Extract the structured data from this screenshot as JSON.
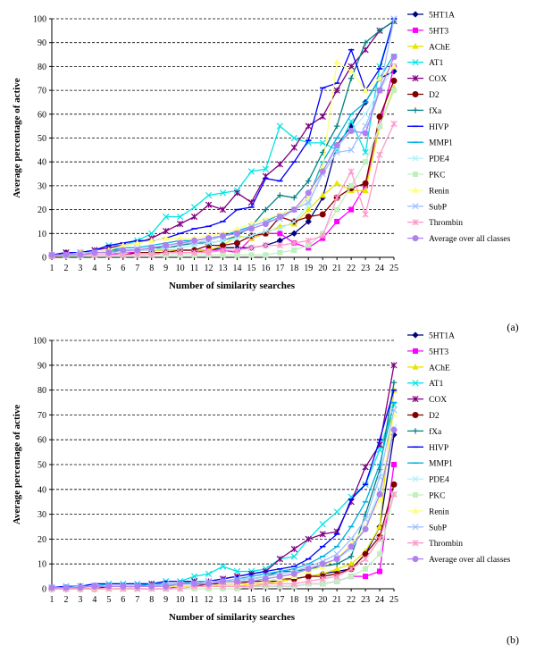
{
  "chart_data": [
    {
      "type": "line",
      "panel_label": "(a)",
      "xlabel": "Number of similarity searches",
      "ylabel": "Average percentage of active",
      "x": [
        1,
        2,
        3,
        4,
        5,
        6,
        7,
        8,
        9,
        10,
        11,
        12,
        13,
        14,
        15,
        16,
        17,
        18,
        19,
        20,
        21,
        22,
        23,
        24,
        25
      ],
      "ylim": [
        0,
        100
      ],
      "yticks": [
        0,
        10,
        20,
        30,
        40,
        50,
        60,
        70,
        80,
        90,
        100
      ],
      "grid": "horizontal dashed",
      "legend": "right",
      "series": [
        {
          "name": "5HT1A",
          "color": "#000080",
          "marker": "diamond",
          "values": [
            1,
            2,
            2,
            2,
            2,
            2,
            3,
            3,
            3,
            3,
            3,
            3,
            4,
            4,
            4,
            5,
            7,
            10,
            15,
            25,
            47,
            55,
            65,
            75,
            78
          ]
        },
        {
          "name": "5HT3",
          "color": "#ff00ff",
          "marker": "square",
          "values": [
            0.5,
            1,
            1,
            1,
            1,
            2,
            2,
            2,
            2,
            2,
            2,
            3,
            3,
            2,
            8,
            10,
            10,
            6,
            4,
            8,
            15,
            20,
            30,
            55,
            80
          ]
        },
        {
          "name": "AChE",
          "color": "#e6e600",
          "marker": "triangle",
          "values": [
            1,
            1,
            2,
            2,
            2,
            2,
            3,
            3,
            3,
            3,
            3,
            3,
            5,
            9,
            8,
            10,
            13,
            14,
            20,
            26,
            31,
            28,
            28,
            55,
            71
          ]
        },
        {
          "name": "AT1",
          "color": "#00e5e5",
          "marker": "x",
          "values": [
            1,
            2,
            2,
            3,
            5,
            5,
            7,
            10,
            17,
            17,
            21,
            26,
            27,
            28,
            36,
            37,
            55,
            50,
            48,
            48,
            45,
            57,
            44,
            80,
            100
          ]
        },
        {
          "name": "COX",
          "color": "#800080",
          "marker": "star",
          "values": [
            1,
            2,
            2,
            3,
            4,
            5,
            6,
            8,
            11,
            14,
            17,
            22,
            20,
            27,
            23,
            34,
            39,
            46,
            55,
            59,
            70,
            80,
            87,
            95,
            99
          ]
        },
        {
          "name": "D2",
          "color": "#800000",
          "marker": "circle",
          "values": [
            0.5,
            1,
            1,
            1,
            1,
            1,
            2,
            2,
            2,
            3,
            3,
            5,
            5,
            6,
            9,
            10,
            17,
            15,
            17,
            18,
            25,
            29,
            31,
            59,
            74
          ]
        },
        {
          "name": "fXa",
          "color": "#008080",
          "marker": "plus",
          "values": [
            1,
            1,
            2,
            2,
            3,
            3,
            3,
            4,
            4,
            5,
            6,
            6,
            7,
            9,
            13,
            20,
            26,
            25,
            32,
            44,
            55,
            75,
            90,
            95,
            99
          ]
        },
        {
          "name": "HIVP",
          "color": "#0000ff",
          "marker": "dash",
          "values": [
            1,
            2,
            2,
            3,
            5,
            6,
            7,
            7,
            8,
            10,
            12,
            13,
            15,
            20,
            21,
            33,
            32,
            40,
            49,
            71,
            73,
            87,
            70,
            79,
            100
          ]
        },
        {
          "name": "MMP1",
          "color": "#00b0e0",
          "marker": "dash",
          "values": [
            1,
            1,
            2,
            2,
            3,
            4,
            4,
            5,
            6,
            7,
            7,
            8,
            9,
            11,
            13,
            15,
            18,
            20,
            25,
            40,
            50,
            60,
            65,
            75,
            85
          ]
        },
        {
          "name": "PDE4",
          "color": "#b0f0ff",
          "marker": "x",
          "values": [
            1,
            1,
            1,
            2,
            2,
            2,
            3,
            3,
            4,
            4,
            5,
            6,
            7,
            8,
            9,
            11,
            12,
            15,
            22,
            36,
            46,
            53,
            60,
            70,
            80
          ]
        },
        {
          "name": "PKC",
          "color": "#c0f0c0",
          "marker": "square",
          "values": [
            0.5,
            0.5,
            0.5,
            1,
            1,
            1,
            1,
            1,
            1,
            1,
            1,
            1,
            1,
            1,
            1,
            1,
            2,
            3,
            5,
            10,
            20,
            30,
            40,
            55,
            70
          ]
        },
        {
          "name": "Renin",
          "color": "#ffff80",
          "marker": "triangle",
          "values": [
            1,
            1,
            2,
            2,
            3,
            5,
            6,
            7,
            8,
            8,
            8,
            9,
            10,
            12,
            14,
            16,
            18,
            20,
            25,
            38,
            82,
            78,
            70,
            75,
            80
          ]
        },
        {
          "name": "SubP",
          "color": "#a0c0ff",
          "marker": "x",
          "values": [
            1,
            1,
            2,
            2,
            2,
            3,
            3,
            4,
            5,
            6,
            6,
            7,
            9,
            10,
            13,
            15,
            16,
            20,
            23,
            35,
            44,
            45,
            55,
            70,
            100
          ]
        },
        {
          "name": "Thrombin",
          "color": "#ff99cc",
          "marker": "star",
          "values": [
            0.5,
            1,
            1,
            1,
            1,
            1,
            1,
            1,
            2,
            2,
            2,
            2,
            3,
            3,
            4,
            5,
            5,
            6,
            7,
            9,
            25,
            36,
            18,
            43,
            56
          ]
        },
        {
          "name": "Average over all classes",
          "color": "#b080f0",
          "marker": "circle",
          "values": [
            1,
            1,
            1,
            2,
            2,
            3,
            3,
            4,
            5,
            6,
            7,
            8,
            9,
            10,
            12,
            14,
            17,
            20,
            27,
            36,
            47,
            53,
            52,
            70,
            84
          ]
        }
      ]
    },
    {
      "type": "line",
      "panel_label": "(b)",
      "xlabel": "Number of similarity searches",
      "ylabel": "Average percentage of active",
      "x": [
        1,
        2,
        3,
        4,
        5,
        6,
        7,
        8,
        9,
        10,
        11,
        12,
        13,
        14,
        15,
        16,
        17,
        18,
        19,
        20,
        21,
        22,
        23,
        24,
        25
      ],
      "ylim": [
        0,
        100
      ],
      "yticks": [
        0,
        10,
        20,
        30,
        40,
        50,
        60,
        70,
        80,
        90,
        100
      ],
      "grid": "horizontal dashed",
      "legend": "right",
      "series": [
        {
          "name": "5HT1A",
          "color": "#000080",
          "marker": "diamond",
          "values": [
            0.5,
            0.5,
            1,
            1,
            1,
            1,
            1,
            1,
            1,
            1,
            1,
            1,
            2,
            2,
            3,
            3,
            3,
            4,
            5,
            6,
            7,
            8,
            14,
            25,
            62
          ]
        },
        {
          "name": "5HT3",
          "color": "#ff00ff",
          "marker": "square",
          "values": [
            0,
            0,
            0,
            0,
            0,
            0,
            0,
            0,
            0,
            1,
            1,
            1,
            1,
            1,
            1,
            1,
            1,
            1,
            2,
            2,
            3,
            5,
            5,
            7,
            50
          ]
        },
        {
          "name": "AChE",
          "color": "#e6e600",
          "marker": "triangle",
          "values": [
            0,
            0,
            0,
            0,
            0,
            0,
            1,
            1,
            1,
            1,
            1,
            1,
            1,
            1,
            2,
            2,
            3,
            4,
            5,
            6,
            8,
            10,
            15,
            25,
            80
          ]
        },
        {
          "name": "AT1",
          "color": "#00e5e5",
          "marker": "x",
          "values": [
            0.5,
            1,
            1,
            1,
            2,
            2,
            2,
            2,
            3,
            3,
            5,
            6,
            9,
            7,
            7,
            8,
            12,
            13,
            20,
            26,
            31,
            37,
            42,
            56,
            74
          ]
        },
        {
          "name": "COX",
          "color": "#800080",
          "marker": "star",
          "values": [
            0.5,
            0.5,
            1,
            1,
            1,
            1,
            1,
            2,
            2,
            2,
            3,
            3,
            4,
            5,
            6,
            7,
            12,
            16,
            20,
            22,
            23,
            35,
            49,
            58,
            90
          ]
        },
        {
          "name": "D2",
          "color": "#800000",
          "marker": "circle",
          "values": [
            0,
            0,
            0,
            0,
            1,
            1,
            1,
            1,
            1,
            1,
            1,
            2,
            2,
            2,
            3,
            3,
            4,
            4,
            5,
            5,
            6,
            8,
            14,
            21,
            42
          ]
        },
        {
          "name": "fXa",
          "color": "#008080",
          "marker": "plus",
          "values": [
            0.5,
            0.5,
            1,
            1,
            1,
            1,
            1,
            1,
            2,
            2,
            2,
            2,
            3,
            3,
            4,
            5,
            7,
            7,
            8,
            9,
            10,
            13,
            30,
            48,
            83
          ]
        },
        {
          "name": "HIVP",
          "color": "#0000ff",
          "marker": "dash",
          "values": [
            0.5,
            1,
            1,
            2,
            2,
            2,
            2,
            2,
            3,
            3,
            3,
            3,
            4,
            5,
            6,
            7,
            8,
            9,
            12,
            17,
            22,
            36,
            42,
            60,
            80
          ]
        },
        {
          "name": "MMP1",
          "color": "#00b0e0",
          "marker": "dash",
          "values": [
            0.5,
            0.5,
            1,
            1,
            1,
            1,
            1,
            2,
            2,
            2,
            3,
            3,
            3,
            4,
            5,
            6,
            7,
            8,
            10,
            13,
            17,
            25,
            35,
            50,
            75
          ]
        },
        {
          "name": "PDE4",
          "color": "#b0f0ff",
          "marker": "x",
          "values": [
            0.5,
            0.5,
            0.5,
            1,
            1,
            1,
            1,
            1,
            1,
            2,
            2,
            2,
            3,
            3,
            4,
            4,
            5,
            6,
            8,
            10,
            12,
            16,
            25,
            40,
            65
          ]
        },
        {
          "name": "PKC",
          "color": "#c0f0c0",
          "marker": "square",
          "values": [
            0,
            0,
            0,
            0,
            0,
            0,
            0,
            0,
            0,
            0,
            0,
            0,
            0,
            0,
            1,
            1,
            1,
            1,
            2,
            2,
            3,
            5,
            8,
            14,
            38
          ]
        },
        {
          "name": "Renin",
          "color": "#ffff80",
          "marker": "triangle",
          "values": [
            0,
            0,
            0,
            0,
            0,
            1,
            1,
            1,
            1,
            1,
            1,
            1,
            2,
            2,
            2,
            3,
            4,
            5,
            7,
            9,
            12,
            18,
            25,
            36,
            70
          ]
        },
        {
          "name": "SubP",
          "color": "#a0c0ff",
          "marker": "x",
          "values": [
            0.5,
            0.5,
            1,
            1,
            1,
            1,
            1,
            1,
            2,
            2,
            2,
            3,
            3,
            4,
            4,
            5,
            6,
            7,
            9,
            11,
            14,
            20,
            28,
            45,
            72
          ]
        },
        {
          "name": "Thrombin",
          "color": "#ff99cc",
          "marker": "star",
          "values": [
            0,
            0,
            0,
            0,
            0,
            0,
            0,
            0,
            0,
            0,
            1,
            1,
            1,
            1,
            1,
            2,
            2,
            2,
            3,
            4,
            5,
            8,
            12,
            20,
            38
          ]
        },
        {
          "name": "Average over all classes",
          "color": "#b080f0",
          "marker": "circle",
          "values": [
            0.5,
            0.5,
            0.5,
            1,
            1,
            1,
            1,
            1,
            1,
            2,
            2,
            2,
            3,
            3,
            3,
            4,
            5,
            6,
            8,
            10,
            12,
            17,
            24,
            38,
            64
          ]
        }
      ]
    }
  ]
}
